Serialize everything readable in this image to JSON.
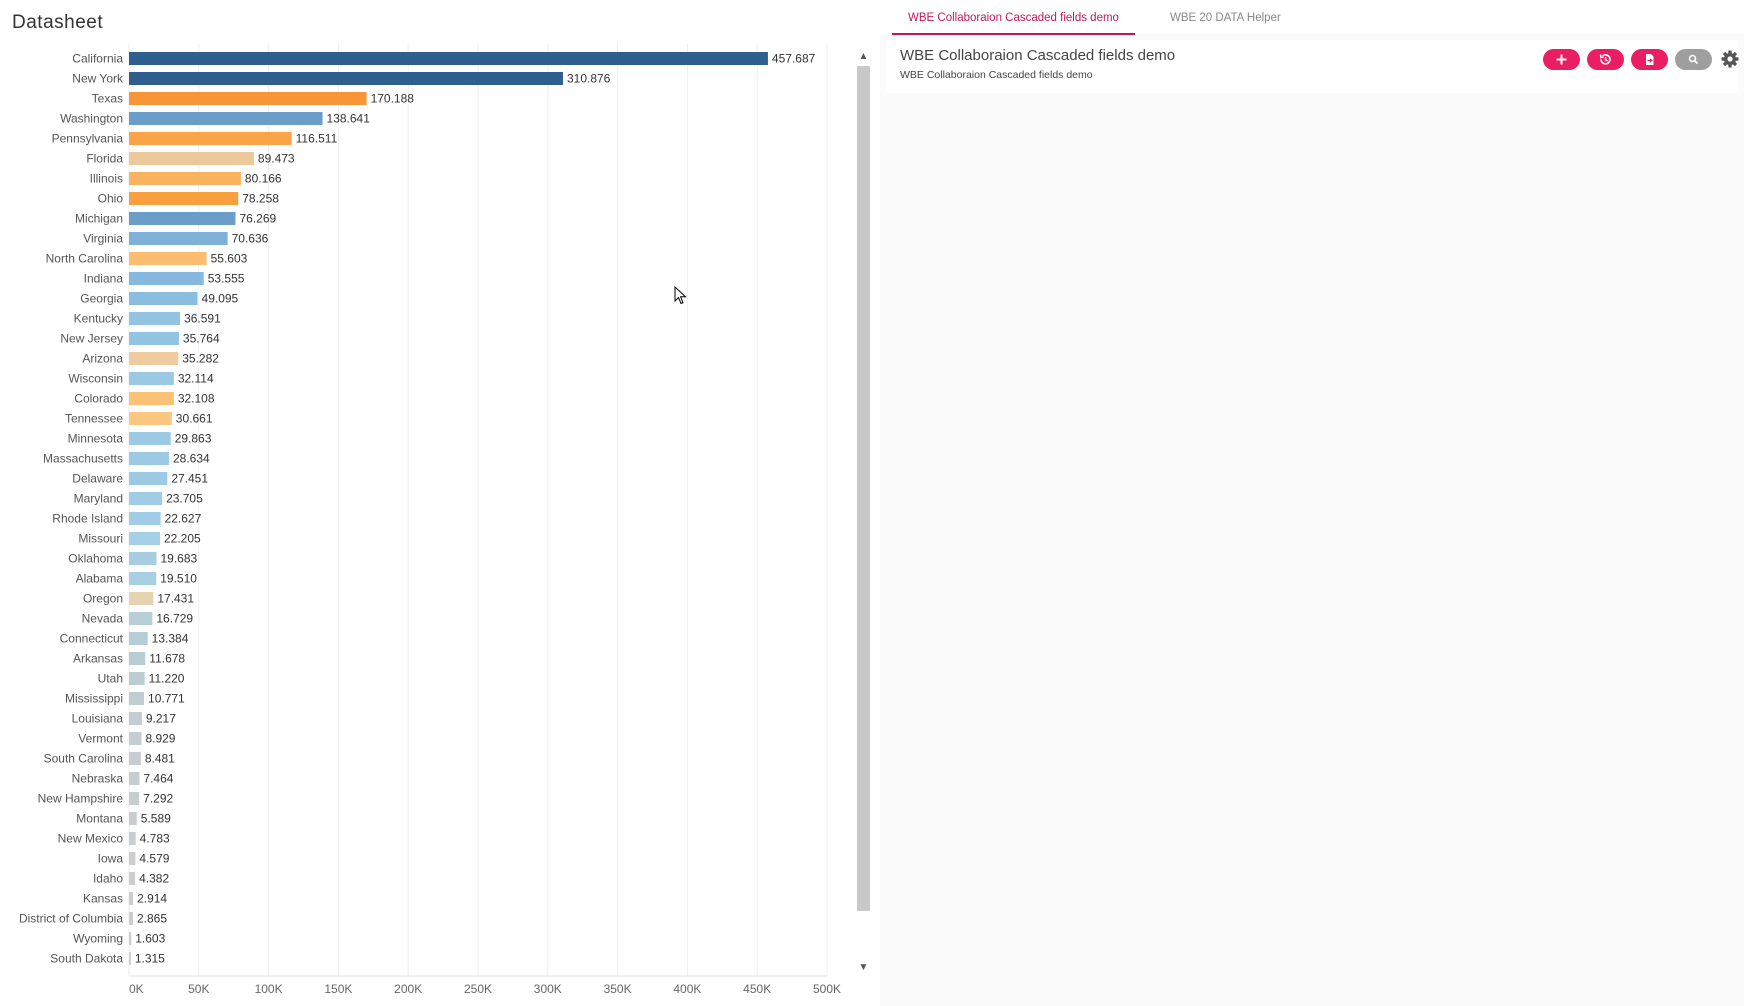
{
  "page_title": "Datasheet",
  "chart_data": {
    "type": "bar",
    "orientation": "horizontal",
    "categories": [
      "California",
      "New York",
      "Texas",
      "Washington",
      "Pennsylvania",
      "Florida",
      "Illinois",
      "Ohio",
      "Michigan",
      "Virginia",
      "North Carolina",
      "Indiana",
      "Georgia",
      "Kentucky",
      "New Jersey",
      "Arizona",
      "Wisconsin",
      "Colorado",
      "Tennessee",
      "Minnesota",
      "Massachusetts",
      "Delaware",
      "Maryland",
      "Rhode Island",
      "Missouri",
      "Oklahoma",
      "Alabama",
      "Oregon",
      "Nevada",
      "Connecticut",
      "Arkansas",
      "Utah",
      "Mississippi",
      "Louisiana",
      "Vermont",
      "South Carolina",
      "Nebraska",
      "New Hampshire",
      "Montana",
      "New Mexico",
      "Iowa",
      "Idaho",
      "Kansas",
      "District of Columbia",
      "Wyoming",
      "South Dakota"
    ],
    "values": [
      457687,
      310876,
      170188,
      138641,
      116511,
      89473,
      80166,
      78258,
      76269,
      70636,
      55603,
      53555,
      49095,
      36591,
      35764,
      35282,
      32114,
      32108,
      30661,
      29863,
      28634,
      27451,
      23705,
      22627,
      22205,
      19683,
      19510,
      17431,
      16729,
      13384,
      11678,
      11220,
      10771,
      9217,
      8929,
      8481,
      7464,
      7292,
      5589,
      4783,
      4579,
      4382,
      2914,
      2865,
      1603,
      1315
    ],
    "value_labels": [
      "457.687",
      "310.876",
      "170.188",
      "138.641",
      "116.511",
      "89.473",
      "80.166",
      "78.258",
      "76.269",
      "70.636",
      "55.603",
      "53.555",
      "49.095",
      "36.591",
      "35.764",
      "35.282",
      "32.114",
      "32.108",
      "30.661",
      "29.863",
      "28.634",
      "27.451",
      "23.705",
      "22.627",
      "22.205",
      "19.683",
      "19.510",
      "17.431",
      "16.729",
      "13.384",
      "11.678",
      "11.220",
      "10.771",
      "9.217",
      "8.929",
      "8.481",
      "7.464",
      "7.292",
      "5.589",
      "4.783",
      "4.579",
      "4.382",
      "2.914",
      "2.865",
      "1.603",
      "1.315"
    ],
    "colors": [
      "#2e5f8e",
      "#2e5f8e",
      "#f79637",
      "#6a9ec9",
      "#f9a448",
      "#ebc99a",
      "#f9b35e",
      "#f8a040",
      "#6a9ec9",
      "#7fb0d8",
      "#fbbd70",
      "#86b9dd",
      "#8bbde0",
      "#93c4e2",
      "#93c4e2",
      "#efcc9e",
      "#9bc9e4",
      "#fbc276",
      "#fbc680",
      "#9ccae5",
      "#9ccae5",
      "#9ccae5",
      "#a1cce6",
      "#a1cce6",
      "#a6d0e8",
      "#a6cde0",
      "#a8cfe3",
      "#e6d3b0",
      "#b8cfd8",
      "#b4cdd6",
      "#b8ccd3",
      "#bccdd2",
      "#c0cdd1",
      "#c2cdd1",
      "#c4cdd0",
      "#c6cdd0",
      "#c8cdd0",
      "#c8cdd0",
      "#cacdcf",
      "#cacdcf",
      "#cbcdcf",
      "#cbcdcf",
      "#cccdce",
      "#cccdce",
      "#cdcdce",
      "#cdcdce"
    ],
    "x_ticks": [
      "0K",
      "50K",
      "100K",
      "150K",
      "200K",
      "250K",
      "300K",
      "350K",
      "400K",
      "450K",
      "500K"
    ],
    "xlim": [
      0,
      500000
    ],
    "grid": true
  },
  "scrollbar": {
    "up_icon": "▲",
    "down_icon": "▼"
  },
  "panel": {
    "tabs": [
      {
        "label": "WBE Collaboraion Cascaded fields demo",
        "active": true
      },
      {
        "label": "WBE 20 DATA Helper",
        "active": false
      }
    ],
    "card_title": "WBE Collaboraion Cascaded fields demo",
    "card_subtitle": "WBE Collaboraion Cascaded fields demo",
    "buttons": [
      {
        "icon": "plus-icon",
        "color": "#e91e63"
      },
      {
        "icon": "history-icon",
        "color": "#e91e63"
      },
      {
        "icon": "export-icon",
        "color": "#e91e63"
      },
      {
        "icon": "search-icon",
        "color": "#9e9e9e"
      }
    ],
    "settings_icon": "gear-icon"
  }
}
